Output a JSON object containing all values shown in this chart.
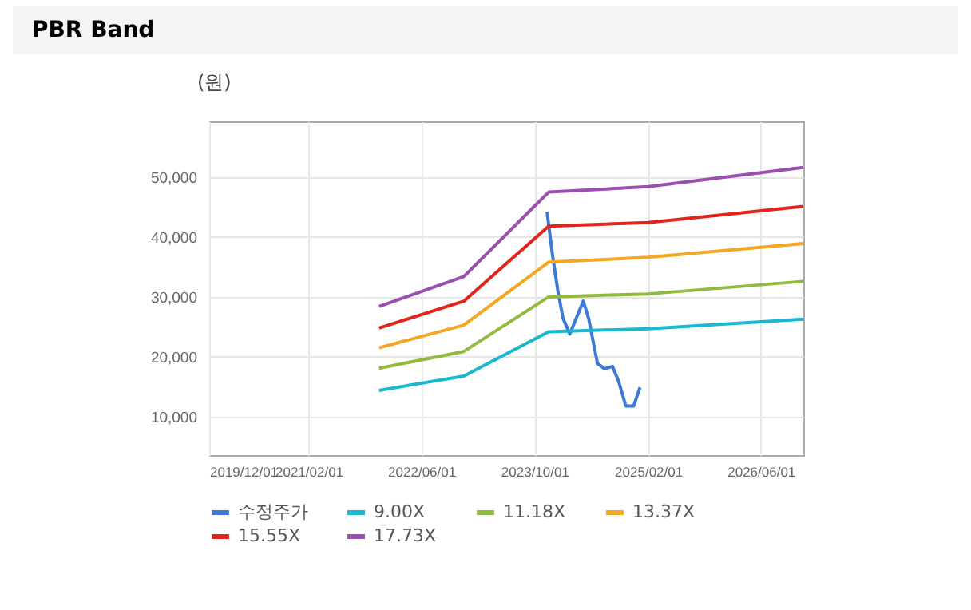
{
  "chart_data": {
    "type": "line",
    "title": "PBR Band",
    "ylabel": "(원)",
    "xlim": [
      "2019-12-01",
      "2026-12-01"
    ],
    "xticks": [
      {
        "value": "2019-12-01",
        "label": "2019/12/01"
      },
      {
        "value": "2021-02-01",
        "label": "2021/02/01"
      },
      {
        "value": "2022-06-01",
        "label": "2022/06/01"
      },
      {
        "value": "2023-10-01",
        "label": "2023/10/01"
      },
      {
        "value": "2025-02-01",
        "label": "2025/02/01"
      },
      {
        "value": "2026-06-01",
        "label": "2026/06/01"
      }
    ],
    "ylim": [
      3600,
      59300
    ],
    "yticks": [
      {
        "value": 10000,
        "label": "10,000"
      },
      {
        "value": 20000,
        "label": "20,000"
      },
      {
        "value": 30000,
        "label": "30,000"
      },
      {
        "value": 40000,
        "label": "40,000"
      },
      {
        "value": 50000,
        "label": "50,000"
      }
    ],
    "grid": true,
    "legend": "bottom",
    "line_style": "solid",
    "series": [
      {
        "name": "수정주가",
        "color": "#3c7ad6",
        "x": [
          "2023-11-24",
          "2023-12-17",
          "2024-01-10",
          "2024-02-01",
          "2024-03-01",
          "2024-03-28",
          "2024-04-28",
          "2024-05-21",
          "2024-06-28",
          "2024-07-28",
          "2024-09-01",
          "2024-09-28",
          "2024-10-28",
          "2024-12-01",
          "2024-12-28"
        ],
        "values": [
          44200,
          37100,
          30900,
          26400,
          23800,
          26400,
          29300,
          26400,
          18900,
          18000,
          18400,
          15800,
          11800,
          11800,
          14900
        ]
      },
      {
        "name": "9.00X",
        "color": "#1ab8d0",
        "x": [
          "2021-12-01",
          "2022-12-01",
          "2023-12-01",
          "2025-02-01",
          "2026-12-01"
        ],
        "values": [
          14400,
          16800,
          24200,
          24700,
          26300
        ]
      },
      {
        "name": "11.18X",
        "color": "#8fbc3f",
        "x": [
          "2021-12-01",
          "2022-12-01",
          "2023-12-01",
          "2025-02-01",
          "2026-12-01"
        ],
        "values": [
          18100,
          20900,
          30000,
          30500,
          32600
        ]
      },
      {
        "name": "13.37X",
        "color": "#f5a623",
        "x": [
          "2021-12-01",
          "2022-12-01",
          "2023-12-01",
          "2025-02-01",
          "2026-12-01"
        ],
        "values": [
          21500,
          25300,
          35800,
          36600,
          38900
        ]
      },
      {
        "name": "15.55X",
        "color": "#e0261c",
        "x": [
          "2021-12-01",
          "2022-12-01",
          "2023-12-01",
          "2025-02-01",
          "2026-12-01"
        ],
        "values": [
          24800,
          29300,
          41800,
          42400,
          45100
        ]
      },
      {
        "name": "17.73X",
        "color": "#9b4fb0",
        "x": [
          "2021-12-01",
          "2022-12-01",
          "2023-12-01",
          "2025-02-01",
          "2026-12-01"
        ],
        "values": [
          28400,
          33400,
          47500,
          48400,
          51600
        ]
      }
    ]
  }
}
